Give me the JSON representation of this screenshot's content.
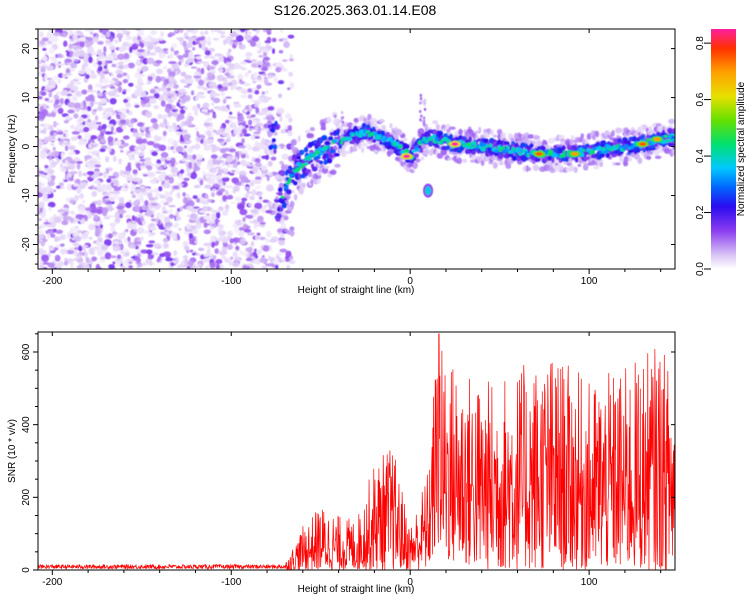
{
  "figure": {
    "title": "S126.2025.363.01.14.E08"
  },
  "chart_data": [
    {
      "type": "heatmap",
      "title": "S126.2025.363.01.14.E08",
      "xlabel": "Height of straight line (km)",
      "ylabel": "Frequency (Hz)",
      "xlim": [
        -208,
        148
      ],
      "ylim": [
        -25,
        24
      ],
      "xticks": [
        -200,
        -100,
        0,
        100
      ],
      "yticks": [
        -20,
        -10,
        0,
        10,
        20
      ],
      "colorbar": {
        "label": "Normalized spectral amplitude",
        "range": [
          0,
          0.85
        ],
        "ticks": [
          0.0,
          0.2,
          0.4,
          0.6,
          0.8
        ],
        "colormap": [
          "#ffffff",
          "#d8c2f5",
          "#8a3cf0",
          "#2a0cf0",
          "#0066ff",
          "#00c8ff",
          "#00e070",
          "#66e000",
          "#e8e000",
          "#ffa000",
          "#ff3000",
          "#ff20a0"
        ]
      },
      "noise_region": {
        "x_range": [
          -208,
          -72
        ],
        "y_range": [
          -25,
          24
        ]
      },
      "ridge": {
        "description_points": [
          [
            -75,
            -13
          ],
          [
            -65,
            -5
          ],
          [
            -55,
            -2
          ],
          [
            -40,
            1
          ],
          [
            -25,
            3
          ],
          [
            -10,
            1
          ],
          [
            0,
            -2
          ],
          [
            10,
            2
          ],
          [
            25,
            0.5
          ],
          [
            40,
            0
          ],
          [
            60,
            -1
          ],
          [
            75,
            -1.5
          ],
          [
            90,
            -1.5
          ],
          [
            110,
            -0.5
          ],
          [
            130,
            0.5
          ],
          [
            148,
            2
          ]
        ],
        "peaks": [
          {
            "x": -2,
            "y": -2,
            "amp": 0.85
          },
          {
            "x": 25,
            "y": 0.5,
            "amp": 0.85
          },
          {
            "x": 72,
            "y": -1.5,
            "amp": 0.75
          },
          {
            "x": 92,
            "y": -1.5,
            "amp": 0.7
          },
          {
            "x": 130,
            "y": 0.5,
            "amp": 0.75
          },
          {
            "x": 138,
            "y": 1.5,
            "amp": 0.7
          }
        ],
        "isolated_blob": {
          "x": 10,
          "y": -9,
          "amp": 0.4
        }
      }
    },
    {
      "type": "line",
      "xlabel": "Height of straight line (km)",
      "ylabel": "SNR (10 * v/v)",
      "xlim": [
        -208,
        148
      ],
      "ylim": [
        0,
        655
      ],
      "xticks": [
        -200,
        -100,
        0,
        100
      ],
      "yticks": [
        0,
        200,
        400,
        600
      ],
      "color": "#ff0000",
      "series": [
        {
          "name": "SNR",
          "x_range": [
            -208,
            148
          ],
          "envelope_x": [
            -208,
            -70,
            -60,
            -50,
            -40,
            -30,
            -20,
            -10,
            0,
            10,
            15,
            20,
            40,
            60,
            80,
            100,
            120,
            140,
            148
          ],
          "envelope_max": [
            18,
            18,
            120,
            180,
            150,
            140,
            300,
            350,
            120,
            280,
            640,
            600,
            520,
            560,
            600,
            520,
            560,
            630,
            520
          ],
          "envelope_min": [
            0,
            0,
            0,
            0,
            0,
            0,
            0,
            0,
            0,
            0,
            60,
            20,
            0,
            0,
            0,
            0,
            0,
            0,
            0
          ],
          "peak": {
            "x": 16,
            "y": 650
          }
        }
      ]
    }
  ]
}
